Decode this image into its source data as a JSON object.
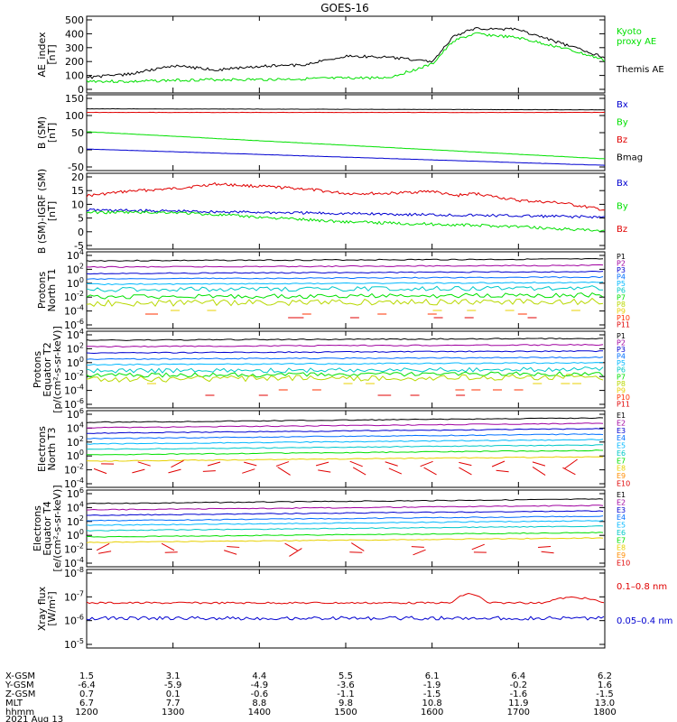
{
  "title": "GOES-16",
  "colors": {
    "black": "#000000",
    "red": "#e00000",
    "green": "#00e000",
    "blue": "#0000d0",
    "cyan": "#00c8c8",
    "magenta": "#a000a0",
    "orange": "#ff8c00",
    "yellow": "#e8d000"
  },
  "panels": [
    {
      "id": "ae",
      "ylabel": [
        "AE_index",
        "[nT]"
      ],
      "ticks": [
        "500",
        "400",
        "300",
        "200",
        "100",
        "0"
      ],
      "legend": [
        {
          "text": "Kyoto",
          "color": "green"
        },
        {
          "text": "proxy AE",
          "color": "green"
        },
        {
          "text": "Themis AE",
          "color": "black"
        }
      ]
    },
    {
      "id": "bsm",
      "ylabel": [
        "B (SM)",
        "[nT]"
      ],
      "ticks": [
        "150",
        "100",
        "50",
        "0",
        "-50"
      ],
      "legend": [
        {
          "text": "Bx",
          "color": "blue"
        },
        {
          "text": "By",
          "color": "green"
        },
        {
          "text": "Bz",
          "color": "red"
        },
        {
          "text": "Bmag",
          "color": "black"
        }
      ]
    },
    {
      "id": "bigrf",
      "ylabel": [
        "B (SM)-IGRF (SM)",
        "[nT]"
      ],
      "ticks": [
        "20",
        "15",
        "10",
        "5",
        "0",
        "-5"
      ],
      "legend": [
        {
          "text": "Bx",
          "color": "blue"
        },
        {
          "text": "By",
          "color": "green"
        },
        {
          "text": "Bz",
          "color": "red"
        }
      ]
    },
    {
      "id": "prot_n",
      "ylabel": [
        "Protons",
        "North T1"
      ],
      "ticks": [
        "10^4",
        "10^2",
        "10^0",
        "10^-2",
        "10^-4",
        "10^-6"
      ],
      "legend": [
        "P1",
        "P2",
        "P3",
        "P4",
        "P5",
        "P6",
        "P7",
        "P8",
        "P9",
        "P10",
        "P11"
      ]
    },
    {
      "id": "prot_e",
      "ylabel": [
        "Protons",
        "Equator T2",
        "[p/(cm²-s-sr-keV)]"
      ],
      "ticks": [
        "10^4",
        "10^2",
        "10^0",
        "10^-2",
        "10^-4",
        "10^-6"
      ],
      "legend": [
        "P1",
        "P2",
        "P3",
        "P4",
        "P5",
        "P6",
        "P7",
        "P8",
        "P9",
        "P10",
        "P11"
      ]
    },
    {
      "id": "elec_n",
      "ylabel": [
        "Electrons",
        "North T3"
      ],
      "ticks": [
        "10^6",
        "10^4",
        "10^2",
        "10^0",
        "10^-2",
        "10^-4"
      ],
      "legend": [
        "E1",
        "E2",
        "E3",
        "E4",
        "E5",
        "E6",
        "E7",
        "E8",
        "E9",
        "E10"
      ]
    },
    {
      "id": "elec_e",
      "ylabel": [
        "Electrons",
        "Equator T4",
        "[e/(cm²-s-sr-keV)]"
      ],
      "ticks": [
        "10^6",
        "10^4",
        "10^2",
        "10^0",
        "10^-2",
        "10^-4"
      ],
      "legend": [
        "E1",
        "E2",
        "E3",
        "E4",
        "E5",
        "E6",
        "E7",
        "E8",
        "E9",
        "E10"
      ]
    },
    {
      "id": "xray",
      "ylabel": [
        "Xray flux",
        "[W/m²]"
      ],
      "ticks": [
        "10^-8",
        "10^-7",
        "10^-6",
        "10^-5"
      ],
      "legend": [
        {
          "text": "0.1–0.8 nm",
          "color": "red"
        },
        {
          "text": "0.05–0.4 nm",
          "color": "blue"
        }
      ]
    }
  ],
  "footer": {
    "row_labels": [
      "X-GSM",
      "Y-GSM",
      "Z-GSM",
      "MLT",
      "hhmm"
    ],
    "columns": [
      [
        "1.5",
        "-6.4",
        "0.7",
        "6.7",
        "1200"
      ],
      [
        "3.1",
        "-5.9",
        "0.1",
        "7.7",
        "1300"
      ],
      [
        "4.4",
        "-4.9",
        "-0.6",
        "8.8",
        "1400"
      ],
      [
        "5.5",
        "-3.6",
        "-1.1",
        "9.8",
        "1500"
      ],
      [
        "6.1",
        "-1.9",
        "-1.5",
        "10.8",
        "1600"
      ],
      [
        "6.4",
        "-0.2",
        "-1.6",
        "11.9",
        "1700"
      ],
      [
        "6.2",
        "1.6",
        "-1.5",
        "13.0",
        "1800"
      ]
    ],
    "date": "2021 Aug 13"
  },
  "chart_data": {
    "type": "line",
    "x_label": "hhmm",
    "x_ticks": [
      "1200",
      "1300",
      "1400",
      "1500",
      "1600",
      "1700",
      "1800"
    ],
    "x_range": [
      "1200",
      "1800"
    ],
    "panels": [
      {
        "name": "AE_index",
        "unit": "nT",
        "ylim": [
          0,
          500
        ],
        "series": [
          {
            "name": "Kyoto",
            "color": "green",
            "x": [
              "1200",
              "1230",
              "1300",
              "1330",
              "1400",
              "1430",
              "1500",
              "1530",
              "1600",
              "1615",
              "1630",
              "1700",
              "1730",
              "1800"
            ],
            "values": [
              60,
              55,
              65,
              70,
              70,
              75,
              80,
              85,
              180,
              350,
              400,
              370,
              300,
              210
            ]
          },
          {
            "name": "Themis AE",
            "color": "black",
            "x": [
              "1200",
              "1230",
              "1300",
              "1330",
              "1400",
              "1430",
              "1500",
              "1530",
              "1600",
              "1615",
              "1630",
              "1700",
              "1730",
              "1800"
            ],
            "values": [
              85,
              110,
              170,
              140,
              165,
              175,
              240,
              230,
              200,
              380,
              440,
              430,
              330,
              230
            ]
          }
        ]
      },
      {
        "name": "B (SM)",
        "unit": "nT",
        "ylim": [
          -60,
          150
        ],
        "series": [
          {
            "name": "Bmag",
            "color": "black",
            "x": [
              "1200",
              "1800"
            ],
            "values": [
              118,
              115
            ]
          },
          {
            "name": "Bz",
            "color": "red",
            "x": [
              "1200",
              "1800"
            ],
            "values": [
              107,
              107
            ]
          },
          {
            "name": "By",
            "color": "green",
            "x": [
              "1200",
              "1800"
            ],
            "values": [
              48,
              -35
            ]
          },
          {
            "name": "Bx",
            "color": "blue",
            "x": [
              "1200",
              "1800"
            ],
            "values": [
              -5,
              -55
            ]
          }
        ]
      },
      {
        "name": "B (SM)-IGRF (SM)",
        "unit": "nT",
        "ylim": [
          -8,
          21
        ],
        "series": [
          {
            "name": "Bz",
            "color": "red",
            "x": [
              "1200",
              "1230",
              "1300",
              "1330",
              "1400",
              "1430",
              "1500",
              "1530",
              "1600",
              "1615",
              "1630",
              "1700",
              "1730",
              "1800"
            ],
            "values": [
              13,
              15,
              16,
              18,
              17,
              16,
              14,
              14,
              15,
              13,
              14,
              11,
              10,
              7
            ]
          },
          {
            "name": "Bx",
            "color": "blue",
            "x": [
              "1200",
              "1800"
            ],
            "values": [
              7,
              4
            ]
          },
          {
            "name": "By",
            "color": "green",
            "x": [
              "1200",
              "1300",
              "1400",
              "1500",
              "1600",
              "1700",
              "1800"
            ],
            "values": [
              6,
              6,
              4,
              2,
              1,
              0,
              -2
            ]
          }
        ]
      }
    ]
  }
}
